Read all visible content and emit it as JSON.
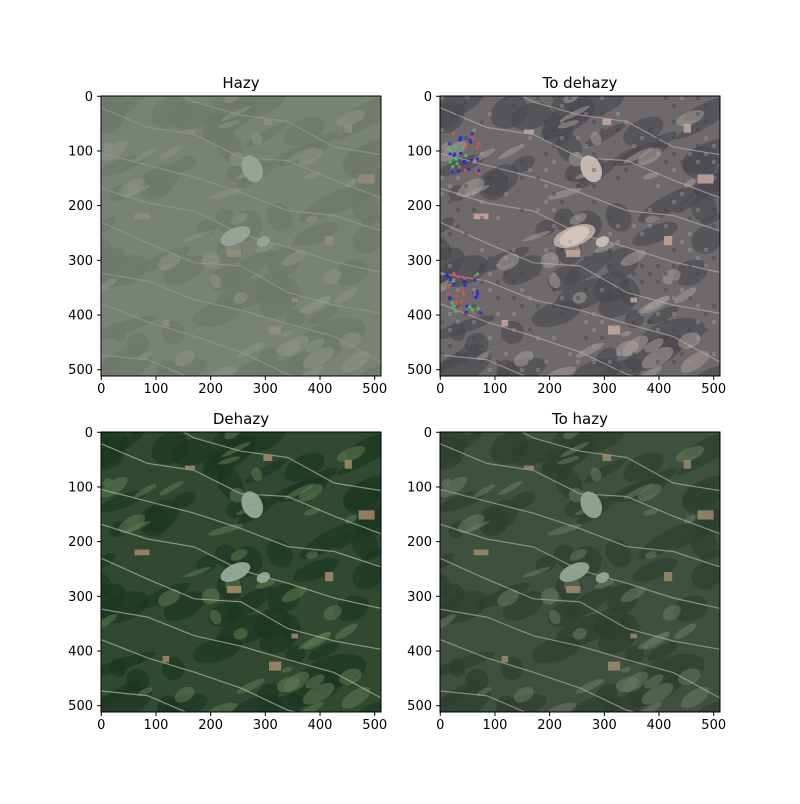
{
  "figure": {
    "panels": [
      {
        "id": "hazy",
        "title": "Hazy",
        "image": "aerial-satellite-hazy",
        "x_ticks": [
          "0",
          "100",
          "200",
          "300",
          "400",
          "500"
        ],
        "y_ticks": [
          "0",
          "100",
          "200",
          "300",
          "400",
          "500"
        ],
        "colors": {
          "base": "#6f7a6c",
          "dark": "#5d6a5b",
          "light": "#8e968a",
          "road": "#9aa095",
          "field": "#9a8a7a",
          "lake": "#a4b0a4"
        }
      },
      {
        "id": "to-dehazy",
        "title": "To dehazy",
        "image": "aerial-satellite-artifacts",
        "x_ticks": [
          "0",
          "100",
          "200",
          "300",
          "400",
          "500"
        ],
        "y_ticks": [
          "0",
          "100",
          "200",
          "300",
          "400",
          "500"
        ],
        "colors": {
          "base": "#6e6a6c",
          "dark": "#4a4a50",
          "light": "#a79a98",
          "road": "#b6aaa6",
          "field": "#c8a89c",
          "lake": "#d2c2b8",
          "artifact_blue": "#2a2ad8",
          "artifact_red": "#e05050",
          "artifact_green": "#40c860"
        }
      },
      {
        "id": "dehazy",
        "title": "Dehazy",
        "image": "aerial-satellite-clear",
        "x_ticks": [
          "0",
          "100",
          "200",
          "300",
          "400",
          "500"
        ],
        "y_ticks": [
          "0",
          "100",
          "200",
          "300",
          "400",
          "500"
        ],
        "colors": {
          "base": "#2f4a30",
          "dark": "#1c3520",
          "light": "#5d7a52",
          "road": "#b8b8a4",
          "field": "#a88a6c",
          "lake": "#9ab0a0"
        }
      },
      {
        "id": "to-hazy",
        "title": "To hazy",
        "image": "aerial-satellite-rehazed",
        "x_ticks": [
          "0",
          "100",
          "200",
          "300",
          "400",
          "500"
        ],
        "y_ticks": [
          "0",
          "100",
          "200",
          "300",
          "400",
          "500"
        ],
        "colors": {
          "base": "#3e5040",
          "dark": "#2c3f30",
          "light": "#6a7a62",
          "road": "#aab0a0",
          "field": "#a08870",
          "lake": "#98aa9c"
        }
      }
    ]
  }
}
